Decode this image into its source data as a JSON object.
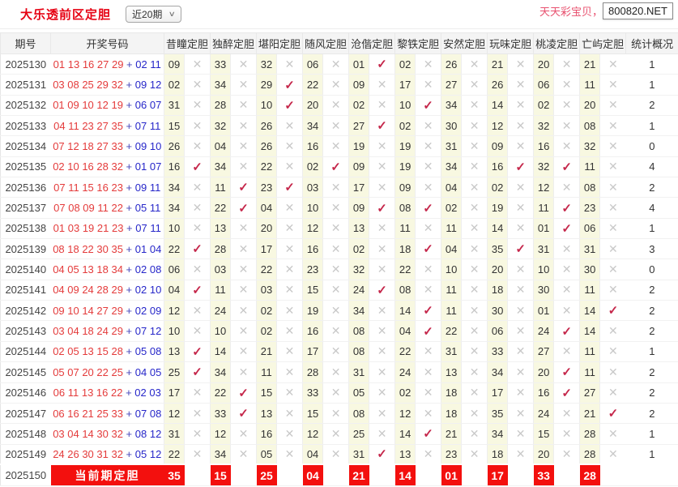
{
  "topbar": {
    "title": "大乐透前区定胆",
    "range_select": {
      "value": "近20期"
    },
    "promo_text": "天天彩宝贝，",
    "promo_site": "800820.NET"
  },
  "icons": {
    "hit": "✓",
    "miss": "✕",
    "chevron": "∨"
  },
  "colors": {
    "title_red": "#e60012",
    "hit_check": "#c5274b",
    "miss_cross": "#c9c9c9",
    "front_number": "#e43b3b",
    "back_number": "#2626c9",
    "pick_cell_bg": "#f8f8e1",
    "current_row_red": "#f3100e",
    "promo_pink": "#e8506e"
  },
  "table": {
    "headers": [
      "期号",
      "开奖号码",
      "昔瞳定胆",
      "独醉定胆",
      "堪阳定胆",
      "随风定胆",
      "沧偕定胆",
      "黎铁定胆",
      "安然定胆",
      "玩味定胆",
      "桃凌定胆",
      "亡屿定胆",
      "统计概况"
    ],
    "rows": [
      {
        "period": "2025130",
        "front": "01 13 16 27 29",
        "back": "02 11",
        "picks": [
          {
            "n": "09",
            "hit": false
          },
          {
            "n": "33",
            "hit": false
          },
          {
            "n": "32",
            "hit": false
          },
          {
            "n": "06",
            "hit": false
          },
          {
            "n": "01",
            "hit": true
          },
          {
            "n": "02",
            "hit": false
          },
          {
            "n": "26",
            "hit": false
          },
          {
            "n": "21",
            "hit": false
          },
          {
            "n": "20",
            "hit": false
          },
          {
            "n": "21",
            "hit": false
          }
        ],
        "stat": "1"
      },
      {
        "period": "2025131",
        "front": "03 08 25 29 32",
        "back": "09 12",
        "picks": [
          {
            "n": "02",
            "hit": false
          },
          {
            "n": "34",
            "hit": false
          },
          {
            "n": "29",
            "hit": true
          },
          {
            "n": "22",
            "hit": false
          },
          {
            "n": "09",
            "hit": false
          },
          {
            "n": "17",
            "hit": false
          },
          {
            "n": "27",
            "hit": false
          },
          {
            "n": "26",
            "hit": false
          },
          {
            "n": "06",
            "hit": false
          },
          {
            "n": "11",
            "hit": false
          }
        ],
        "stat": "1"
      },
      {
        "period": "2025132",
        "front": "01 09 10 12 19",
        "back": "06 07",
        "picks": [
          {
            "n": "31",
            "hit": false
          },
          {
            "n": "28",
            "hit": false
          },
          {
            "n": "10",
            "hit": true
          },
          {
            "n": "20",
            "hit": false
          },
          {
            "n": "02",
            "hit": false
          },
          {
            "n": "10",
            "hit": true
          },
          {
            "n": "34",
            "hit": false
          },
          {
            "n": "14",
            "hit": false
          },
          {
            "n": "02",
            "hit": false
          },
          {
            "n": "20",
            "hit": false
          }
        ],
        "stat": "2"
      },
      {
        "period": "2025133",
        "front": "04 11 23 27 35",
        "back": "07 11",
        "picks": [
          {
            "n": "15",
            "hit": false
          },
          {
            "n": "32",
            "hit": false
          },
          {
            "n": "26",
            "hit": false
          },
          {
            "n": "34",
            "hit": false
          },
          {
            "n": "27",
            "hit": true
          },
          {
            "n": "02",
            "hit": false
          },
          {
            "n": "30",
            "hit": false
          },
          {
            "n": "12",
            "hit": false
          },
          {
            "n": "32",
            "hit": false
          },
          {
            "n": "08",
            "hit": false
          }
        ],
        "stat": "1"
      },
      {
        "period": "2025134",
        "front": "07 12 18 27 33",
        "back": "09 10",
        "picks": [
          {
            "n": "26",
            "hit": false
          },
          {
            "n": "04",
            "hit": false
          },
          {
            "n": "26",
            "hit": false
          },
          {
            "n": "16",
            "hit": false
          },
          {
            "n": "19",
            "hit": false
          },
          {
            "n": "19",
            "hit": false
          },
          {
            "n": "31",
            "hit": false
          },
          {
            "n": "09",
            "hit": false
          },
          {
            "n": "16",
            "hit": false
          },
          {
            "n": "32",
            "hit": false
          }
        ],
        "stat": "0"
      },
      {
        "period": "2025135",
        "front": "02 10 16 28 32",
        "back": "01 07",
        "picks": [
          {
            "n": "16",
            "hit": true
          },
          {
            "n": "34",
            "hit": false
          },
          {
            "n": "22",
            "hit": false
          },
          {
            "n": "02",
            "hit": true
          },
          {
            "n": "09",
            "hit": false
          },
          {
            "n": "19",
            "hit": false
          },
          {
            "n": "34",
            "hit": false
          },
          {
            "n": "16",
            "hit": true
          },
          {
            "n": "32",
            "hit": true
          },
          {
            "n": "11",
            "hit": false
          }
        ],
        "stat": "4"
      },
      {
        "period": "2025136",
        "front": "07 11 15 16 23",
        "back": "09 11",
        "picks": [
          {
            "n": "34",
            "hit": false
          },
          {
            "n": "11",
            "hit": true
          },
          {
            "n": "23",
            "hit": true
          },
          {
            "n": "03",
            "hit": false
          },
          {
            "n": "17",
            "hit": false
          },
          {
            "n": "09",
            "hit": false
          },
          {
            "n": "04",
            "hit": false
          },
          {
            "n": "02",
            "hit": false
          },
          {
            "n": "12",
            "hit": false
          },
          {
            "n": "08",
            "hit": false
          }
        ],
        "stat": "2"
      },
      {
        "period": "2025137",
        "front": "07 08 09 11 22",
        "back": "05 11",
        "picks": [
          {
            "n": "34",
            "hit": false
          },
          {
            "n": "22",
            "hit": true
          },
          {
            "n": "04",
            "hit": false
          },
          {
            "n": "10",
            "hit": false
          },
          {
            "n": "09",
            "hit": true
          },
          {
            "n": "08",
            "hit": true
          },
          {
            "n": "02",
            "hit": false
          },
          {
            "n": "19",
            "hit": false
          },
          {
            "n": "11",
            "hit": true
          },
          {
            "n": "23",
            "hit": false
          }
        ],
        "stat": "4"
      },
      {
        "period": "2025138",
        "front": "01 03 19 21 23",
        "back": "07 11",
        "picks": [
          {
            "n": "10",
            "hit": false
          },
          {
            "n": "13",
            "hit": false
          },
          {
            "n": "20",
            "hit": false
          },
          {
            "n": "12",
            "hit": false
          },
          {
            "n": "13",
            "hit": false
          },
          {
            "n": "11",
            "hit": false
          },
          {
            "n": "11",
            "hit": false
          },
          {
            "n": "14",
            "hit": false
          },
          {
            "n": "01",
            "hit": true
          },
          {
            "n": "06",
            "hit": false
          }
        ],
        "stat": "1"
      },
      {
        "period": "2025139",
        "front": "08 18 22 30 35",
        "back": "01 04",
        "picks": [
          {
            "n": "22",
            "hit": true
          },
          {
            "n": "28",
            "hit": false
          },
          {
            "n": "17",
            "hit": false
          },
          {
            "n": "16",
            "hit": false
          },
          {
            "n": "02",
            "hit": false
          },
          {
            "n": "18",
            "hit": true
          },
          {
            "n": "04",
            "hit": false
          },
          {
            "n": "35",
            "hit": true
          },
          {
            "n": "31",
            "hit": false
          },
          {
            "n": "31",
            "hit": false
          }
        ],
        "stat": "3"
      },
      {
        "period": "2025140",
        "front": "04 05 13 18 34",
        "back": "02 08",
        "picks": [
          {
            "n": "06",
            "hit": false
          },
          {
            "n": "03",
            "hit": false
          },
          {
            "n": "22",
            "hit": false
          },
          {
            "n": "23",
            "hit": false
          },
          {
            "n": "32",
            "hit": false
          },
          {
            "n": "22",
            "hit": false
          },
          {
            "n": "10",
            "hit": false
          },
          {
            "n": "20",
            "hit": false
          },
          {
            "n": "10",
            "hit": false
          },
          {
            "n": "30",
            "hit": false
          }
        ],
        "stat": "0"
      },
      {
        "period": "2025141",
        "front": "04 09 24 28 29",
        "back": "02 10",
        "picks": [
          {
            "n": "04",
            "hit": true
          },
          {
            "n": "11",
            "hit": false
          },
          {
            "n": "03",
            "hit": false
          },
          {
            "n": "15",
            "hit": false
          },
          {
            "n": "24",
            "hit": true
          },
          {
            "n": "08",
            "hit": false
          },
          {
            "n": "11",
            "hit": false
          },
          {
            "n": "18",
            "hit": false
          },
          {
            "n": "30",
            "hit": false
          },
          {
            "n": "11",
            "hit": false
          }
        ],
        "stat": "2"
      },
      {
        "period": "2025142",
        "front": "09 10 14 27 29",
        "back": "02 09",
        "picks": [
          {
            "n": "12",
            "hit": false
          },
          {
            "n": "24",
            "hit": false
          },
          {
            "n": "02",
            "hit": false
          },
          {
            "n": "19",
            "hit": false
          },
          {
            "n": "34",
            "hit": false
          },
          {
            "n": "14",
            "hit": true
          },
          {
            "n": "11",
            "hit": false
          },
          {
            "n": "30",
            "hit": false
          },
          {
            "n": "01",
            "hit": false
          },
          {
            "n": "14",
            "hit": true
          }
        ],
        "stat": "2"
      },
      {
        "period": "2025143",
        "front": "03 04 18 24 29",
        "back": "07 12",
        "picks": [
          {
            "n": "10",
            "hit": false
          },
          {
            "n": "10",
            "hit": false
          },
          {
            "n": "02",
            "hit": false
          },
          {
            "n": "16",
            "hit": false
          },
          {
            "n": "08",
            "hit": false
          },
          {
            "n": "04",
            "hit": true
          },
          {
            "n": "22",
            "hit": false
          },
          {
            "n": "06",
            "hit": false
          },
          {
            "n": "24",
            "hit": true
          },
          {
            "n": "14",
            "hit": false
          }
        ],
        "stat": "2"
      },
      {
        "period": "2025144",
        "front": "02 05 13 15 28",
        "back": "05 08",
        "picks": [
          {
            "n": "13",
            "hit": true
          },
          {
            "n": "14",
            "hit": false
          },
          {
            "n": "21",
            "hit": false
          },
          {
            "n": "17",
            "hit": false
          },
          {
            "n": "08",
            "hit": false
          },
          {
            "n": "22",
            "hit": false
          },
          {
            "n": "31",
            "hit": false
          },
          {
            "n": "33",
            "hit": false
          },
          {
            "n": "27",
            "hit": false
          },
          {
            "n": "11",
            "hit": false
          }
        ],
        "stat": "1"
      },
      {
        "period": "2025145",
        "front": "05 07 20 22 25",
        "back": "04 05",
        "picks": [
          {
            "n": "25",
            "hit": true
          },
          {
            "n": "34",
            "hit": false
          },
          {
            "n": "11",
            "hit": false
          },
          {
            "n": "28",
            "hit": false
          },
          {
            "n": "31",
            "hit": false
          },
          {
            "n": "24",
            "hit": false
          },
          {
            "n": "13",
            "hit": false
          },
          {
            "n": "34",
            "hit": false
          },
          {
            "n": "20",
            "hit": true
          },
          {
            "n": "11",
            "hit": false
          }
        ],
        "stat": "2"
      },
      {
        "period": "2025146",
        "front": "06 11 13 16 22",
        "back": "02 03",
        "picks": [
          {
            "n": "17",
            "hit": false
          },
          {
            "n": "22",
            "hit": true
          },
          {
            "n": "15",
            "hit": false
          },
          {
            "n": "33",
            "hit": false
          },
          {
            "n": "05",
            "hit": false
          },
          {
            "n": "02",
            "hit": false
          },
          {
            "n": "18",
            "hit": false
          },
          {
            "n": "17",
            "hit": false
          },
          {
            "n": "16",
            "hit": true
          },
          {
            "n": "27",
            "hit": false
          }
        ],
        "stat": "2"
      },
      {
        "period": "2025147",
        "front": "06 16 21 25 33",
        "back": "07 08",
        "picks": [
          {
            "n": "12",
            "hit": false
          },
          {
            "n": "33",
            "hit": true
          },
          {
            "n": "13",
            "hit": false
          },
          {
            "n": "15",
            "hit": false
          },
          {
            "n": "08",
            "hit": false
          },
          {
            "n": "12",
            "hit": false
          },
          {
            "n": "18",
            "hit": false
          },
          {
            "n": "35",
            "hit": false
          },
          {
            "n": "24",
            "hit": false
          },
          {
            "n": "21",
            "hit": true
          }
        ],
        "stat": "2"
      },
      {
        "period": "2025148",
        "front": "03 04 14 30 32",
        "back": "08 12",
        "picks": [
          {
            "n": "31",
            "hit": false
          },
          {
            "n": "12",
            "hit": false
          },
          {
            "n": "16",
            "hit": false
          },
          {
            "n": "12",
            "hit": false
          },
          {
            "n": "25",
            "hit": false
          },
          {
            "n": "14",
            "hit": true
          },
          {
            "n": "21",
            "hit": false
          },
          {
            "n": "34",
            "hit": false
          },
          {
            "n": "15",
            "hit": false
          },
          {
            "n": "28",
            "hit": false
          }
        ],
        "stat": "1"
      },
      {
        "period": "2025149",
        "front": "24 26 30 31 32",
        "back": "05 12",
        "picks": [
          {
            "n": "22",
            "hit": false
          },
          {
            "n": "34",
            "hit": false
          },
          {
            "n": "05",
            "hit": false
          },
          {
            "n": "04",
            "hit": false
          },
          {
            "n": "31",
            "hit": true
          },
          {
            "n": "13",
            "hit": false
          },
          {
            "n": "23",
            "hit": false
          },
          {
            "n": "18",
            "hit": false
          },
          {
            "n": "20",
            "hit": false
          },
          {
            "n": "28",
            "hit": false
          }
        ],
        "stat": "1"
      }
    ],
    "current_row": {
      "period": "2025150",
      "label": "当前期定胆",
      "picks": [
        "35",
        "15",
        "25",
        "04",
        "21",
        "14",
        "01",
        "17",
        "33",
        "28"
      ],
      "stat": ""
    }
  }
}
